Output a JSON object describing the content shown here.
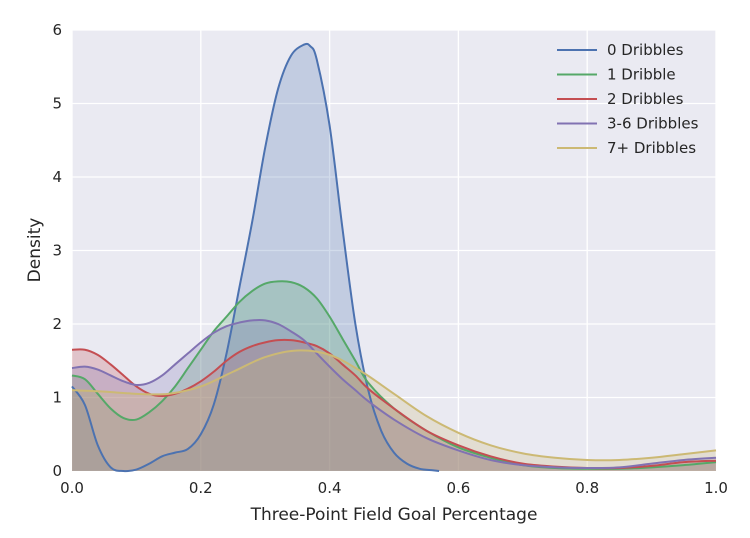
{
  "chart_data": {
    "type": "area",
    "xlabel": "Three-Point Field Goal Percentage",
    "ylabel": "Density",
    "xlim": [
      0.0,
      1.0
    ],
    "ylim": [
      0,
      6
    ],
    "xticks": [
      "0.0",
      "0.2",
      "0.4",
      "0.6",
      "0.8",
      "1.0"
    ],
    "yticks": [
      "0",
      "1",
      "2",
      "3",
      "4",
      "5",
      "6"
    ],
    "grid": true,
    "legend_position": "top-right",
    "series": [
      {
        "name": "0 Dribbles",
        "color": "#4c72b0",
        "x": [
          0.0,
          0.02,
          0.04,
          0.06,
          0.08,
          0.1,
          0.12,
          0.14,
          0.16,
          0.18,
          0.2,
          0.22,
          0.24,
          0.26,
          0.28,
          0.3,
          0.32,
          0.34,
          0.36,
          0.37,
          0.38,
          0.4,
          0.42,
          0.44,
          0.46,
          0.48,
          0.5,
          0.52,
          0.54,
          0.56,
          0.57
        ],
        "y": [
          1.15,
          0.9,
          0.35,
          0.05,
          0.0,
          0.02,
          0.1,
          0.2,
          0.25,
          0.3,
          0.5,
          0.9,
          1.6,
          2.5,
          3.4,
          4.4,
          5.2,
          5.65,
          5.8,
          5.78,
          5.6,
          4.7,
          3.3,
          2.0,
          1.1,
          0.55,
          0.25,
          0.1,
          0.03,
          0.01,
          0.0
        ]
      },
      {
        "name": "1 Dribble",
        "color": "#55a868",
        "x": [
          0.0,
          0.02,
          0.04,
          0.06,
          0.08,
          0.1,
          0.12,
          0.14,
          0.16,
          0.18,
          0.2,
          0.22,
          0.24,
          0.26,
          0.28,
          0.3,
          0.32,
          0.34,
          0.36,
          0.38,
          0.4,
          0.42,
          0.44,
          0.46,
          0.5,
          0.55,
          0.6,
          0.65,
          0.7,
          0.75,
          0.8,
          0.85,
          0.9,
          0.95,
          1.0
        ],
        "y": [
          1.3,
          1.25,
          1.05,
          0.85,
          0.72,
          0.7,
          0.8,
          0.95,
          1.15,
          1.4,
          1.65,
          1.9,
          2.1,
          2.3,
          2.45,
          2.55,
          2.58,
          2.57,
          2.5,
          2.35,
          2.1,
          1.8,
          1.5,
          1.2,
          0.85,
          0.55,
          0.32,
          0.18,
          0.08,
          0.04,
          0.03,
          0.03,
          0.05,
          0.08,
          0.12
        ]
      },
      {
        "name": "2 Dribbles",
        "color": "#c44e52",
        "x": [
          0.0,
          0.02,
          0.04,
          0.06,
          0.08,
          0.1,
          0.12,
          0.14,
          0.16,
          0.18,
          0.2,
          0.22,
          0.24,
          0.26,
          0.28,
          0.3,
          0.32,
          0.34,
          0.36,
          0.38,
          0.4,
          0.42,
          0.44,
          0.46,
          0.5,
          0.55,
          0.6,
          0.65,
          0.7,
          0.75,
          0.8,
          0.85,
          0.9,
          0.95,
          1.0
        ],
        "y": [
          1.65,
          1.65,
          1.58,
          1.45,
          1.3,
          1.15,
          1.05,
          1.02,
          1.05,
          1.12,
          1.22,
          1.35,
          1.5,
          1.62,
          1.7,
          1.75,
          1.78,
          1.78,
          1.75,
          1.7,
          1.6,
          1.45,
          1.3,
          1.12,
          0.85,
          0.55,
          0.35,
          0.2,
          0.1,
          0.06,
          0.04,
          0.04,
          0.07,
          0.12,
          0.14
        ]
      },
      {
        "name": "3-6 Dribbles",
        "color": "#8172b2",
        "x": [
          0.0,
          0.02,
          0.04,
          0.06,
          0.08,
          0.1,
          0.12,
          0.14,
          0.16,
          0.18,
          0.2,
          0.22,
          0.24,
          0.26,
          0.28,
          0.3,
          0.32,
          0.34,
          0.36,
          0.38,
          0.4,
          0.42,
          0.44,
          0.46,
          0.5,
          0.55,
          0.6,
          0.65,
          0.7,
          0.75,
          0.8,
          0.85,
          0.9,
          0.95,
          1.0
        ],
        "y": [
          1.4,
          1.42,
          1.38,
          1.3,
          1.22,
          1.17,
          1.2,
          1.3,
          1.45,
          1.6,
          1.75,
          1.88,
          1.97,
          2.02,
          2.05,
          2.05,
          2.0,
          1.9,
          1.78,
          1.6,
          1.42,
          1.25,
          1.1,
          0.95,
          0.7,
          0.45,
          0.28,
          0.15,
          0.08,
          0.05,
          0.04,
          0.05,
          0.1,
          0.15,
          0.18
        ]
      },
      {
        "name": "7+ Dribbles",
        "color": "#ccb974",
        "x": [
          0.0,
          0.05,
          0.1,
          0.15,
          0.2,
          0.25,
          0.3,
          0.35,
          0.4,
          0.45,
          0.5,
          0.55,
          0.6,
          0.65,
          0.7,
          0.75,
          0.8,
          0.85,
          0.9,
          0.95,
          1.0
        ],
        "y": [
          1.1,
          1.08,
          1.05,
          1.05,
          1.15,
          1.35,
          1.55,
          1.64,
          1.58,
          1.35,
          1.05,
          0.75,
          0.52,
          0.35,
          0.24,
          0.18,
          0.15,
          0.15,
          0.18,
          0.23,
          0.28
        ]
      }
    ]
  }
}
